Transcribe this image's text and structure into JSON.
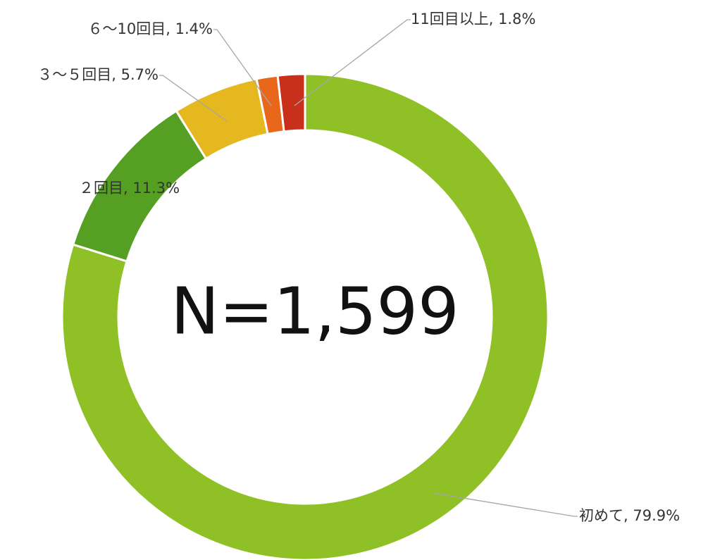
{
  "chart_data": {
    "type": "pie",
    "donut": true,
    "center_label": "N=1,599",
    "values": [
      79.9,
      11.3,
      5.7,
      1.4,
      1.8
    ],
    "value_labels": [
      "初めて, 79.9%",
      "２回目, 11.3%",
      "３～５回目, 5.7%",
      "６～10回目, 1.4%",
      "11回目以上, 1.8%"
    ],
    "colors": [
      "#8fc127",
      "#55a022",
      "#e6b820",
      "#e8671b",
      "#c9301c"
    ]
  }
}
